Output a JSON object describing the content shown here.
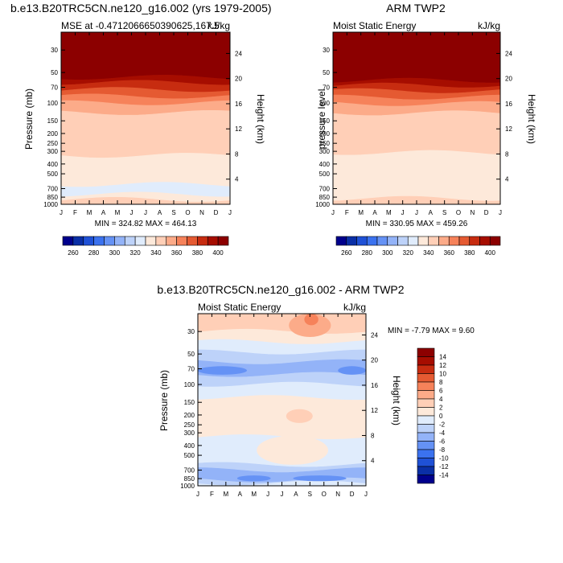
{
  "chart_data": [
    {
      "type": "heatmap",
      "title": "b.e13.B20TRC5CN.ne120_g16.002 (yrs 1979-2005)",
      "subtitle_left": "MSE at -0.4712066650390625,167.5",
      "subtitle_right": "kJ/kg",
      "ylabel": "Pressure (mb)",
      "ylabel_right": "Height (km)",
      "x_ticks": [
        "J",
        "F",
        "M",
        "A",
        "M",
        "J",
        "J",
        "A",
        "S",
        "O",
        "N",
        "D",
        "J"
      ],
      "y_ticks": [
        30,
        50,
        70,
        100,
        150,
        200,
        250,
        300,
        400,
        500,
        700,
        850,
        1000
      ],
      "y_ticks_right": [
        24,
        20,
        16,
        12,
        8,
        4
      ],
      "ylim": [
        20,
        1000
      ],
      "stats": "MIN = 324.82 MAX = 464.13",
      "levels": [
        260,
        270,
        280,
        290,
        300,
        310,
        320,
        330,
        340,
        350,
        360,
        370,
        380,
        390,
        400
      ],
      "colorbar_labels": [
        260,
        280,
        300,
        320,
        340,
        360,
        380,
        400
      ],
      "colors": [
        "#00008c",
        "#0a2fa6",
        "#1f51d6",
        "#3b72ef",
        "#6592f5",
        "#93b3f8",
        "#bdd2f9",
        "#e0ecfc",
        "#fde9da",
        "#ffcfb7",
        "#fcab89",
        "#f6825a",
        "#e55a32",
        "#c72c10",
        "#a60d00",
        "#8c0000"
      ],
      "bands": [
        {
          "top": 20,
          "bottom": 56,
          "value": 410
        },
        {
          "top": 56,
          "bottom": 63,
          "value": 392
        },
        {
          "top": 63,
          "bottom": 74,
          "value": 381
        },
        {
          "top": 74,
          "bottom": 86,
          "value": 372
        },
        {
          "top": 86,
          "bottom": 100,
          "value": 362
        },
        {
          "top": 100,
          "bottom": 125,
          "value": 352
        },
        {
          "top": 125,
          "bottom": 330,
          "value": 343
        },
        {
          "top": 330,
          "bottom": 640,
          "value": 335
        },
        {
          "top": 640,
          "bottom": 800,
          "value": 328
        },
        {
          "top": 800,
          "bottom": 900,
          "value": 335
        },
        {
          "top": 900,
          "bottom": 1000,
          "value": 343
        }
      ]
    },
    {
      "type": "heatmap",
      "title": "ARM TWP2",
      "subtitle_left": "Moist Static Energy",
      "subtitle_right": "kJ/kg",
      "ylabel": "pressure level",
      "ylabel_right": "Height (km)",
      "x_ticks": [
        "J",
        "F",
        "M",
        "A",
        "M",
        "J",
        "J",
        "A",
        "S",
        "O",
        "N",
        "D",
        "J"
      ],
      "y_ticks": [
        30,
        50,
        70,
        100,
        150,
        200,
        250,
        300,
        400,
        500,
        700,
        850,
        1000
      ],
      "y_ticks_right": [
        24,
        20,
        16,
        12,
        8,
        4
      ],
      "ylim": [
        20,
        1000
      ],
      "stats": "MIN = 330.95 MAX = 459.26",
      "levels": [
        260,
        270,
        280,
        290,
        300,
        310,
        320,
        330,
        340,
        350,
        360,
        370,
        380,
        390,
        400
      ],
      "colorbar_labels": [
        260,
        280,
        300,
        320,
        340,
        360,
        380,
        400
      ],
      "colors": [
        "#00008c",
        "#0a2fa6",
        "#1f51d6",
        "#3b72ef",
        "#6592f5",
        "#93b3f8",
        "#bdd2f9",
        "#e0ecfc",
        "#fde9da",
        "#ffcfb7",
        "#fcab89",
        "#f6825a",
        "#e55a32",
        "#c72c10",
        "#a60d00",
        "#8c0000"
      ],
      "bands": [
        {
          "top": 20,
          "bottom": 60,
          "value": 410
        },
        {
          "top": 60,
          "bottom": 67,
          "value": 392
        },
        {
          "top": 67,
          "bottom": 76,
          "value": 381
        },
        {
          "top": 76,
          "bottom": 88,
          "value": 372
        },
        {
          "top": 88,
          "bottom": 102,
          "value": 362
        },
        {
          "top": 102,
          "bottom": 126,
          "value": 352
        },
        {
          "top": 126,
          "bottom": 310,
          "value": 343
        },
        {
          "top": 310,
          "bottom": 880,
          "value": 335
        },
        {
          "top": 880,
          "bottom": 1000,
          "value": 343
        }
      ]
    },
    {
      "type": "heatmap",
      "title": "b.e13.B20TRC5CN.ne120_g16.002 - ARM TWP2",
      "subtitle_left": "Moist Static Energy",
      "subtitle_right": "kJ/kg",
      "ylabel": "Pressure (mb)",
      "ylabel_right": "Height (km)",
      "x_ticks": [
        "J",
        "F",
        "M",
        "A",
        "M",
        "J",
        "J",
        "A",
        "S",
        "O",
        "N",
        "D",
        "J"
      ],
      "y_ticks": [
        30,
        50,
        70,
        100,
        150,
        200,
        250,
        300,
        400,
        500,
        700,
        850,
        1000
      ],
      "y_ticks_right": [
        24,
        20,
        16,
        12,
        8,
        4
      ],
      "ylim": [
        20,
        1000
      ],
      "stats": "MIN =  -7.79 MAX =   9.60",
      "levels": [
        -14,
        -12,
        -10,
        -8,
        -6,
        -4,
        -2,
        0,
        2,
        4,
        6,
        8,
        10,
        12,
        14
      ],
      "colorbar_labels": [
        14,
        12,
        10,
        8,
        6,
        4,
        2,
        0,
        -2,
        -4,
        -6,
        -8,
        -10,
        -12,
        -14
      ],
      "colors": [
        "#00008c",
        "#0a2fa6",
        "#1f51d6",
        "#3b72ef",
        "#6592f5",
        "#93b3f8",
        "#bdd2f9",
        "#e0ecfc",
        "#fde9da",
        "#ffcfb7",
        "#fcab89",
        "#f6825a",
        "#e55a32",
        "#c72c10",
        "#a60d00",
        "#8c0000"
      ],
      "bands": [
        {
          "top": 20,
          "bottom": 30,
          "value": 3
        },
        {
          "top": 30,
          "bottom": 38,
          "value": 1
        },
        {
          "top": 38,
          "bottom": 48,
          "value": -1
        },
        {
          "top": 48,
          "bottom": 60,
          "value": -3
        },
        {
          "top": 60,
          "bottom": 80,
          "value": -5
        },
        {
          "top": 80,
          "bottom": 100,
          "value": -3
        },
        {
          "top": 100,
          "bottom": 135,
          "value": -1
        },
        {
          "top": 135,
          "bottom": 330,
          "value": 1
        },
        {
          "top": 330,
          "bottom": 620,
          "value": -1
        },
        {
          "top": 620,
          "bottom": 700,
          "value": -3
        },
        {
          "top": 700,
          "bottom": 880,
          "value": -5
        },
        {
          "top": 880,
          "bottom": 940,
          "value": -3
        },
        {
          "top": 940,
          "bottom": 1000,
          "value": -1
        }
      ],
      "features": [
        {
          "month_start": 6.5,
          "month_end": 9.5,
          "top": 20,
          "bottom": 34,
          "value": 5
        },
        {
          "month_start": 7.6,
          "month_end": 8.6,
          "top": 20,
          "bottom": 26,
          "value": 7
        },
        {
          "month_start": 0,
          "month_end": 3.5,
          "top": 66,
          "bottom": 80,
          "value": -7
        },
        {
          "month_start": 10,
          "month_end": 12,
          "top": 66,
          "bottom": 80,
          "value": -7
        },
        {
          "month_start": 6.3,
          "month_end": 8.2,
          "top": 175,
          "bottom": 240,
          "value": 3
        },
        {
          "month_start": 4.2,
          "month_end": 9.3,
          "top": 320,
          "bottom": 620,
          "value": 1
        },
        {
          "month_start": 2.8,
          "month_end": 5.2,
          "top": 790,
          "bottom": 900,
          "value": -7
        },
        {
          "month_start": 6.8,
          "month_end": 10.6,
          "top": 790,
          "bottom": 900,
          "value": -7
        }
      ]
    }
  ]
}
